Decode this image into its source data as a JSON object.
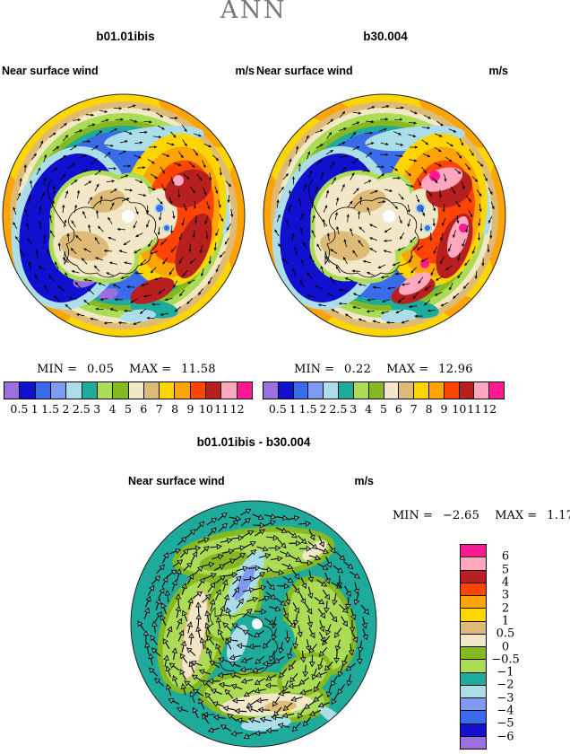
{
  "header": {
    "title": "ANN"
  },
  "labels": {
    "variable": "Near surface wind",
    "units": "m/s",
    "min": "MIN =",
    "max": "MAX ="
  },
  "panels": {
    "left": {
      "title": "b01.01ibis",
      "min": "0.05",
      "max": "11.58"
    },
    "right": {
      "title": "b30.004",
      "min": "0.22",
      "max": "12.96"
    },
    "diff": {
      "title": "b01.01ibis - b30.004",
      "min": "−2.65",
      "max": "1.17"
    }
  },
  "colorbar": {
    "levels": [
      "0.5",
      "1",
      "1.5",
      "2",
      "2.5",
      "3",
      "4",
      "5",
      "6",
      "7",
      "8",
      "9",
      "10",
      "11",
      "12"
    ],
    "colors": [
      "#9B6FDE",
      "#1010CE",
      "#3A6BE8",
      "#7E9BF2",
      "#ABDEE8",
      "#1FAB9B",
      "#ABDC55",
      "#85B821",
      "#F2E7C6",
      "#DDBB77",
      "#FFD500",
      "#FFA405",
      "#FF4505",
      "#B82020",
      "#FFA8C0",
      "#FF1793"
    ]
  },
  "diff_colorbar": {
    "levels": [
      "6",
      "5",
      "4",
      "3",
      "2",
      "1",
      "0.5",
      "0",
      "−0.5",
      "−1",
      "−2",
      "−3",
      "−4",
      "−5",
      "−6"
    ],
    "colors": [
      "#FF1793",
      "#FFA8C0",
      "#B82020",
      "#FF4505",
      "#FFA405",
      "#FFD500",
      "#DDBB77",
      "#F2E7C6",
      "#85B821",
      "#ABDC55",
      "#1FAB9B",
      "#ABDEE8",
      "#7E9BF2",
      "#3A6BE8",
      "#1010CE",
      "#9B6FDE"
    ]
  },
  "chart_data": [
    {
      "type": "heatmap",
      "subtype": "south-polar contour map with wind vector overlay",
      "title": "b01.01ibis",
      "suptitle": "ANN",
      "variable": "Near surface wind",
      "units": "m/s",
      "stat_min": 0.05,
      "stat_max": 11.58,
      "contour_levels": [
        0.5,
        1,
        1.5,
        2,
        2.5,
        3,
        4,
        5,
        6,
        7,
        8,
        9,
        10,
        11,
        12
      ],
      "palette": [
        "#9B6FDE",
        "#1010CE",
        "#3A6BE8",
        "#7E9BF2",
        "#ABDEE8",
        "#1FAB9B",
        "#ABDC55",
        "#85B821",
        "#F2E7C6",
        "#DDBB77",
        "#FFD500",
        "#FFA405",
        "#FF4505",
        "#B82020",
        "#FFA8C0",
        "#FF1793"
      ],
      "legend_position": "horizontal colorbar below"
    },
    {
      "type": "heatmap",
      "subtype": "south-polar contour map with wind vector overlay",
      "title": "b30.004",
      "suptitle": "ANN",
      "variable": "Near surface wind",
      "units": "m/s",
      "stat_min": 0.22,
      "stat_max": 12.96,
      "contour_levels": [
        0.5,
        1,
        1.5,
        2,
        2.5,
        3,
        4,
        5,
        6,
        7,
        8,
        9,
        10,
        11,
        12
      ],
      "palette": [
        "#9B6FDE",
        "#1010CE",
        "#3A6BE8",
        "#7E9BF2",
        "#ABDEE8",
        "#1FAB9B",
        "#ABDC55",
        "#85B821",
        "#F2E7C6",
        "#DDBB77",
        "#FFD500",
        "#FFA405",
        "#FF4505",
        "#B82020",
        "#FFA8C0",
        "#FF1793"
      ],
      "legend_position": "horizontal colorbar below"
    },
    {
      "type": "heatmap",
      "subtype": "south-polar difference contour map with wind vector overlay",
      "title": "b01.01ibis - b30.004",
      "variable": "Near surface wind",
      "units": "m/s",
      "stat_min": -2.65,
      "stat_max": 1.17,
      "contour_levels": [
        -6,
        -5,
        -4,
        -3,
        -2,
        -1,
        -0.5,
        0,
        0.5,
        1,
        2,
        3,
        4,
        5,
        6
      ],
      "palette_top_to_bottom": [
        "#FF1793",
        "#FFA8C0",
        "#B82020",
        "#FF4505",
        "#FFA405",
        "#FFD500",
        "#DDBB77",
        "#F2E7C6",
        "#85B821",
        "#ABDC55",
        "#1FAB9B",
        "#ABDEE8",
        "#7E9BF2",
        "#3A6BE8",
        "#1010CE",
        "#9B6FDE"
      ],
      "legend_position": "vertical colorbar right"
    }
  ]
}
